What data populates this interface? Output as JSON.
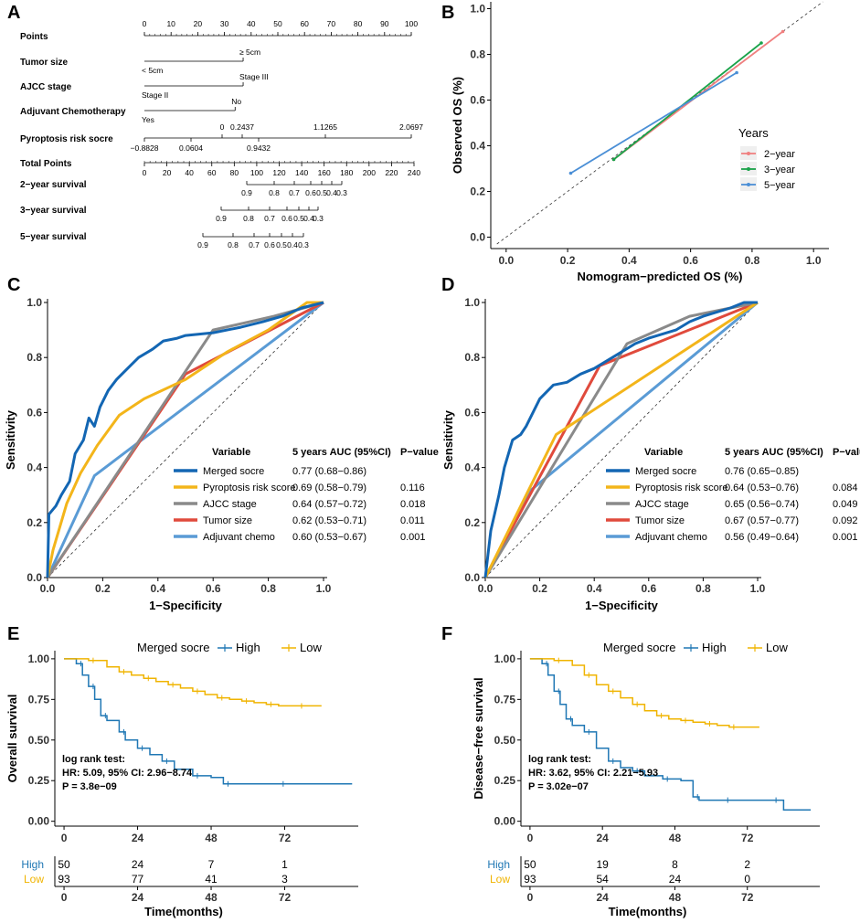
{
  "colors": {
    "axis": "#000000",
    "km_high": "#1f77b4",
    "km_low": "#f0b400",
    "roc_merged": "#1366b3",
    "roc_pyro": "#f3b51a",
    "roc_ajcc": "#8a8a8a",
    "roc_tumor": "#e04a3c",
    "roc_chemo": "#5a9bd5",
    "calib_2yr": "#f08080",
    "calib_3yr": "#1aa34a",
    "calib_5yr": "#4b8fd6"
  },
  "panel_labels": [
    "A",
    "B",
    "C",
    "D",
    "E",
    "F"
  ],
  "chart_data": [
    {
      "panel": "A",
      "type": "table",
      "title": "Nomogram",
      "points_axis": {
        "label": "Points",
        "ticks": [
          "0",
          "10",
          "20",
          "30",
          "40",
          "50",
          "60",
          "70",
          "80",
          "90",
          "100"
        ]
      },
      "rows": [
        {
          "label": "Tumor size",
          "upper": [
            "≥ 5cm"
          ],
          "lower": [
            "< 5cm"
          ]
        },
        {
          "label": "AJCC stage",
          "upper": [
            "Stage III"
          ],
          "lower": [
            "Stage II"
          ]
        },
        {
          "label": "Adjuvant Chemotherapy",
          "upper": [
            "No"
          ],
          "lower": [
            "Yes"
          ]
        },
        {
          "label": "Pyroptosis risk socre",
          "upper": [
            "0",
            "0.2437",
            "1.1265",
            "2.0697"
          ],
          "lower": [
            "−0.8828",
            "0.0604",
            "0.9432"
          ]
        },
        {
          "label": "Total Points",
          "ticks": [
            "0",
            "20",
            "40",
            "60",
            "80",
            "100",
            "120",
            "140",
            "160",
            "180",
            "200",
            "220",
            "240"
          ]
        },
        {
          "label": "2−year survival",
          "ticks": [
            "0.9",
            "0.8",
            "0.7",
            "0.6",
            "0.5",
            "0.4",
            "0.3"
          ]
        },
        {
          "label": "3−year survival",
          "ticks": [
            "0.9",
            "0.8",
            "0.7",
            "0.6",
            "0.5",
            "0.4",
            "0.3"
          ]
        },
        {
          "label": "5−year survival",
          "ticks": [
            "0.9",
            "0.8",
            "0.7",
            "0.6",
            "0.5",
            "0.4",
            "0.3"
          ]
        }
      ]
    },
    {
      "panel": "B",
      "type": "line",
      "xlabel": "Nomogram−predicted OS (%)",
      "ylabel": "Observed OS (%)",
      "xlim": [
        -0.05,
        1.05
      ],
      "ylim": [
        -0.05,
        1.03
      ],
      "xticks": [
        "0.0",
        "0.2",
        "0.4",
        "0.6",
        "0.8",
        "1.0"
      ],
      "yticks": [
        "0.0",
        "0.2",
        "0.4",
        "0.6",
        "0.8",
        "1.0"
      ],
      "legend_title": "Years",
      "series": [
        {
          "name": "2−year",
          "x": [
            0.35,
            0.9
          ],
          "y": [
            0.34,
            0.9
          ]
        },
        {
          "name": "3−year",
          "x": [
            0.35,
            0.83
          ],
          "y": [
            0.34,
            0.85
          ]
        },
        {
          "name": "5−year",
          "x": [
            0.21,
            0.75
          ],
          "y": [
            0.28,
            0.72
          ]
        }
      ]
    },
    {
      "panel": "C",
      "type": "line",
      "xlabel": "1−Specificity",
      "ylabel": "Sensitivity",
      "xticks": [
        "0.0",
        "0.2",
        "0.4",
        "0.6",
        "0.8",
        "1.0"
      ],
      "yticks": [
        "0.0",
        "0.2",
        "0.4",
        "0.6",
        "0.8",
        "1.0"
      ],
      "table_header": [
        "Variable",
        "5 years AUC (95%CI)",
        "P−value"
      ],
      "series": [
        {
          "name": "Merged socre",
          "auc": "0.77 (0.68−0.86)",
          "p": "",
          "x": [
            0,
            0.005,
            0.03,
            0.05,
            0.08,
            0.1,
            0.13,
            0.15,
            0.17,
            0.19,
            0.22,
            0.25,
            0.3,
            0.33,
            0.38,
            0.42,
            0.47,
            0.5,
            0.6,
            0.7,
            0.78,
            0.85,
            0.92,
            1.0
          ],
          "y": [
            0,
            0.23,
            0.26,
            0.3,
            0.35,
            0.45,
            0.5,
            0.58,
            0.55,
            0.62,
            0.68,
            0.72,
            0.77,
            0.8,
            0.83,
            0.86,
            0.87,
            0.88,
            0.89,
            0.91,
            0.93,
            0.95,
            0.98,
            1.0
          ]
        },
        {
          "name": "Pyroptosis risk score",
          "auc": "0.69 (0.58−0.79)",
          "p": "0.116",
          "x": [
            0,
            0.02,
            0.07,
            0.12,
            0.18,
            0.26,
            0.35,
            0.5,
            0.65,
            0.8,
            0.94,
            1.0
          ],
          "y": [
            0,
            0.1,
            0.27,
            0.38,
            0.48,
            0.59,
            0.65,
            0.72,
            0.82,
            0.9,
            1.0,
            1.0
          ]
        },
        {
          "name": "AJCC stage",
          "auc": "0.64 (0.57−0.72)",
          "p": "0.018",
          "x": [
            0,
            0.6,
            0.82,
            1.0
          ],
          "y": [
            0,
            0.9,
            0.95,
            1.0
          ]
        },
        {
          "name": "Tumor size",
          "auc": "0.62 (0.53−0.71)",
          "p": "0.011",
          "x": [
            0,
            0.5,
            1.0
          ],
          "y": [
            0,
            0.74,
            1.0
          ]
        },
        {
          "name": "Adjuvant chemo",
          "auc": "0.60 (0.53−0.67)",
          "p": "0.001",
          "x": [
            0,
            0.17,
            1.0
          ],
          "y": [
            0,
            0.37,
            1.0
          ]
        }
      ]
    },
    {
      "panel": "D",
      "type": "line",
      "xlabel": "1−Specificity",
      "ylabel": "Sensitivity",
      "xticks": [
        "0.0",
        "0.2",
        "0.4",
        "0.6",
        "0.8",
        "1.0"
      ],
      "yticks": [
        "0.0",
        "0.2",
        "0.4",
        "0.6",
        "0.8",
        "1.0"
      ],
      "table_header": [
        "Variable",
        "5 years AUC (95%CI)",
        "P−value"
      ],
      "series": [
        {
          "name": "Merged socre",
          "auc": "0.76 (0.65−0.85)",
          "p": "",
          "x": [
            0,
            0.02,
            0.05,
            0.07,
            0.1,
            0.13,
            0.15,
            0.2,
            0.25,
            0.3,
            0.35,
            0.4,
            0.45,
            0.5,
            0.55,
            0.6,
            0.7,
            0.75,
            0.8,
            0.9,
            0.95,
            1.0
          ],
          "y": [
            0,
            0.17,
            0.3,
            0.4,
            0.5,
            0.52,
            0.55,
            0.65,
            0.7,
            0.71,
            0.74,
            0.76,
            0.79,
            0.82,
            0.85,
            0.87,
            0.9,
            0.93,
            0.95,
            0.98,
            1.0,
            1.0
          ]
        },
        {
          "name": "Pyroptosis risk score",
          "auc": "0.64 (0.53−0.76)",
          "p": "0.084",
          "x": [
            0,
            0.26,
            1.0
          ],
          "y": [
            0,
            0.52,
            1.0
          ]
        },
        {
          "name": "AJCC stage",
          "auc": "0.65 (0.56−0.74)",
          "p": "0.049",
          "x": [
            0,
            0.52,
            0.75,
            1.0
          ],
          "y": [
            0,
            0.85,
            0.95,
            1.0
          ]
        },
        {
          "name": "Tumor size",
          "auc": "0.67 (0.57−0.77)",
          "p": "0.092",
          "x": [
            0,
            0.42,
            1.0
          ],
          "y": [
            0,
            0.77,
            1.0
          ]
        },
        {
          "name": "Adjuvant chemo",
          "auc": "0.56 (0.49−0.64)",
          "p": "0.001",
          "x": [
            0,
            0.17,
            1.0
          ],
          "y": [
            0,
            0.32,
            1.0
          ]
        }
      ]
    },
    {
      "panel": "E",
      "type": "line",
      "ylabel": "Overall survival",
      "xlabel": "Time(months)",
      "legend_title": "Merged socre",
      "legend": [
        "High",
        "Low"
      ],
      "xlim": [
        -3,
        96
      ],
      "ylim": [
        -0.03,
        1.05
      ],
      "xticks": [
        "0",
        "24",
        "48",
        "72"
      ],
      "yticks": [
        "0.00",
        "0.25",
        "0.50",
        "0.75",
        "1.00"
      ],
      "annotation": [
        "log rank test:",
        "HR: 5.09, 95% CI: 2.96−8.74",
        "P = 3.8e−09"
      ],
      "series": [
        {
          "name": "High",
          "x": [
            0,
            4,
            6,
            8,
            10,
            12,
            14,
            18,
            20,
            24,
            28,
            32,
            36,
            42,
            48,
            52,
            60,
            70,
            80,
            94
          ],
          "y": [
            1.0,
            0.97,
            0.9,
            0.83,
            0.75,
            0.65,
            0.62,
            0.55,
            0.5,
            0.45,
            0.41,
            0.37,
            0.32,
            0.28,
            0.27,
            0.23,
            0.23,
            0.23,
            0.23,
            0.23
          ]
        },
        {
          "name": "Low",
          "x": [
            0,
            8,
            14,
            18,
            22,
            26,
            30,
            34,
            38,
            42,
            46,
            50,
            54,
            58,
            62,
            66,
            70,
            76,
            84
          ],
          "y": [
            1.0,
            0.99,
            0.95,
            0.92,
            0.9,
            0.88,
            0.86,
            0.84,
            0.82,
            0.8,
            0.78,
            0.76,
            0.75,
            0.74,
            0.73,
            0.72,
            0.71,
            0.71,
            0.71
          ]
        }
      ],
      "risk_table": {
        "rows": [
          {
            "label": "High",
            "counts": [
              "50",
              "24",
              "7",
              "1"
            ]
          },
          {
            "label": "Low",
            "counts": [
              "93",
              "77",
              "41",
              "3"
            ]
          }
        ]
      }
    },
    {
      "panel": "F",
      "type": "line",
      "ylabel": "Disease−free survival",
      "xlabel": "Time(months)",
      "legend_title": "Merged socre",
      "legend": [
        "High",
        "Low"
      ],
      "xlim": [
        -3,
        96
      ],
      "ylim": [
        -0.03,
        1.05
      ],
      "xticks": [
        "0",
        "24",
        "48",
        "72"
      ],
      "yticks": [
        "0.00",
        "0.25",
        "0.50",
        "0.75",
        "1.00"
      ],
      "annotation": [
        "log rank test:",
        "HR: 3.62, 95% CI: 2.21−5.93",
        "P = 3.02e−07"
      ],
      "series": [
        {
          "name": "High",
          "x": [
            0,
            4,
            6,
            8,
            10,
            12,
            14,
            18,
            22,
            26,
            30,
            34,
            38,
            44,
            50,
            54,
            56,
            64,
            72,
            80,
            84,
            93
          ],
          "y": [
            1.0,
            0.97,
            0.9,
            0.8,
            0.72,
            0.63,
            0.59,
            0.55,
            0.45,
            0.37,
            0.33,
            0.31,
            0.28,
            0.26,
            0.25,
            0.15,
            0.13,
            0.13,
            0.13,
            0.13,
            0.07,
            0.07
          ]
        },
        {
          "name": "Low",
          "x": [
            0,
            8,
            14,
            18,
            22,
            26,
            30,
            34,
            38,
            42,
            46,
            50,
            54,
            58,
            62,
            66,
            70,
            76
          ],
          "y": [
            1.0,
            0.99,
            0.96,
            0.9,
            0.84,
            0.8,
            0.76,
            0.72,
            0.68,
            0.65,
            0.63,
            0.62,
            0.61,
            0.6,
            0.59,
            0.58,
            0.58,
            0.58
          ]
        }
      ],
      "risk_table": {
        "rows": [
          {
            "label": "High",
            "counts": [
              "50",
              "19",
              "8",
              "2"
            ]
          },
          {
            "label": "Low",
            "counts": [
              "93",
              "54",
              "24",
              "0"
            ]
          }
        ]
      }
    }
  ]
}
